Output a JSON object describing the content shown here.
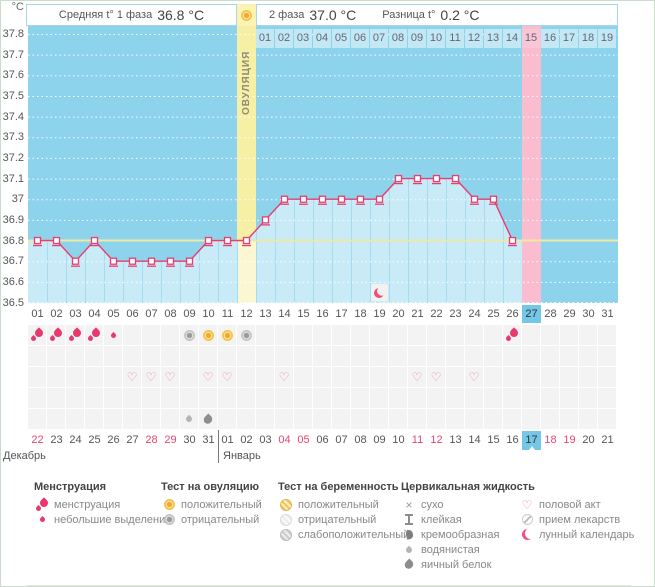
{
  "header": {
    "unit_label": "°C",
    "phase1_label": "Средняя t° 1 фаза",
    "phase1_value": "36.8 °C",
    "phase2_label": "2 фаза",
    "phase2_value": "37.0 °C",
    "diff_label": "Разница t°",
    "diff_value": "0.2 °C"
  },
  "chart_data": {
    "type": "line",
    "ylabel": "°C",
    "ylim": [
      36.5,
      37.8
    ],
    "yticks": [
      "37.8",
      "37.7",
      "37.6",
      "37.5",
      "37.4",
      "37.3",
      "37.2",
      "37.1",
      "37",
      "36.9",
      "36.8",
      "36.7",
      "36.6",
      "36.5"
    ],
    "x_cycle_days": [
      "01",
      "02",
      "03",
      "04",
      "05",
      "06",
      "07",
      "08",
      "09",
      "10",
      "11",
      "12",
      "13",
      "14",
      "15",
      "16",
      "17",
      "18",
      "19",
      "20",
      "21",
      "22",
      "23",
      "24",
      "25",
      "26",
      "27",
      "28",
      "29",
      "30",
      "31"
    ],
    "temperatures": [
      36.8,
      36.8,
      36.7,
      36.8,
      36.7,
      36.7,
      36.7,
      36.7,
      36.7,
      36.8,
      36.8,
      36.8,
      36.9,
      37.0,
      37.0,
      37.0,
      37.0,
      37.0,
      37.0,
      37.1,
      37.1,
      37.1,
      37.1,
      37.0,
      37.0,
      36.8,
      null,
      null,
      null,
      null,
      null
    ],
    "coverline": 36.8,
    "phase1_avg": 36.8,
    "phase2_avg": 37.0,
    "temp_difference": 0.2,
    "ovulation_day": 12,
    "ovulation_label": "ОВУЛЯЦИЯ",
    "highlight_day": 27,
    "moon_day": 19,
    "dpo_labels": [
      "01",
      "02",
      "03",
      "04",
      "05",
      "06",
      "07",
      "08",
      "09",
      "10",
      "11",
      "12",
      "13",
      "14",
      "15",
      "16",
      "17",
      "18",
      "19"
    ],
    "dpo_highlight": "15",
    "grid": true,
    "legend_position": "bottom"
  },
  "events": {
    "rows": [
      {
        "name": "menstruation-and-ovulation-tests",
        "cells": {
          "1": "menses",
          "2": "menses",
          "3": "menses",
          "4": "menses",
          "5": "spotting",
          "9": "opk-negative",
          "10": "opk-positive",
          "11": "opk-positive",
          "12": "opk-negative",
          "26": "menses"
        }
      },
      {
        "name": "pregnancy-tests",
        "cells": {}
      },
      {
        "name": "intercourse",
        "cells": {
          "6": "intercourse",
          "7": "intercourse",
          "8": "intercourse",
          "10": "intercourse",
          "11": "intercourse",
          "14": "intercourse",
          "21": "intercourse",
          "22": "intercourse",
          "24": "intercourse"
        }
      },
      {
        "name": "medication",
        "cells": {}
      },
      {
        "name": "cervical-fluid",
        "cells": {
          "9": "cf-watery",
          "10": "cf-eggwhite"
        }
      }
    ]
  },
  "calendar": {
    "dates": [
      "22",
      "23",
      "24",
      "25",
      "26",
      "27",
      "28",
      "29",
      "30",
      "31",
      "01",
      "02",
      "03",
      "04",
      "05",
      "06",
      "07",
      "08",
      "09",
      "10",
      "11",
      "12",
      "13",
      "14",
      "15",
      "16",
      "17",
      "18",
      "19",
      "20",
      "21"
    ],
    "red_indices": [
      0,
      6,
      7,
      13,
      14,
      20,
      21,
      27,
      28
    ],
    "today_index": 26,
    "month_boundary_after_index": 9,
    "months": [
      {
        "label": "Декабрь"
      },
      {
        "label": "Январь"
      }
    ]
  },
  "legend": {
    "groups": [
      {
        "title": "Менструация",
        "items": [
          {
            "icon": "menses",
            "label": "менструация"
          },
          {
            "icon": "spotting",
            "label": "небольшие выделения"
          }
        ]
      },
      {
        "title": "Тест на овуляцию",
        "items": [
          {
            "icon": "opk-positive",
            "label": "положительный"
          },
          {
            "icon": "opk-negative",
            "label": "отрицательный"
          }
        ]
      },
      {
        "title": "Тест на беременность",
        "items": [
          {
            "icon": "hpt-positive",
            "label": "положительный"
          },
          {
            "icon": "hpt-negative",
            "label": "отрицательный"
          },
          {
            "icon": "hpt-weak",
            "label": "слабоположительный"
          }
        ]
      },
      {
        "title": "Цервикальная жидкость",
        "items": [
          {
            "icon": "cf-dry",
            "label": "сухо"
          },
          {
            "icon": "cf-sticky",
            "label": "клейкая"
          },
          {
            "icon": "cf-creamy",
            "label": "кремообразная"
          },
          {
            "icon": "cf-watery",
            "label": "водянистая"
          },
          {
            "icon": "cf-eggwhite",
            "label": "яичный белок"
          }
        ]
      },
      {
        "title": "",
        "items": [
          {
            "icon": "intercourse",
            "label": "половой акт"
          },
          {
            "icon": "medication",
            "label": "прием лекарств"
          },
          {
            "icon": "lunar",
            "label": "лунный календарь"
          }
        ]
      }
    ]
  },
  "colors": {
    "chart_bg": "#8ed3ec",
    "under_curve": "#c9eaf7",
    "curve": "#e83d6f",
    "ovulation_band": "#f6efa6",
    "ovulation_band_light": "#fbf7d2",
    "coverline": "#efe9a2",
    "highlight_band": "#f9bdcf",
    "today_cell": "#74c7e7",
    "red_date": "#e8466f"
  }
}
